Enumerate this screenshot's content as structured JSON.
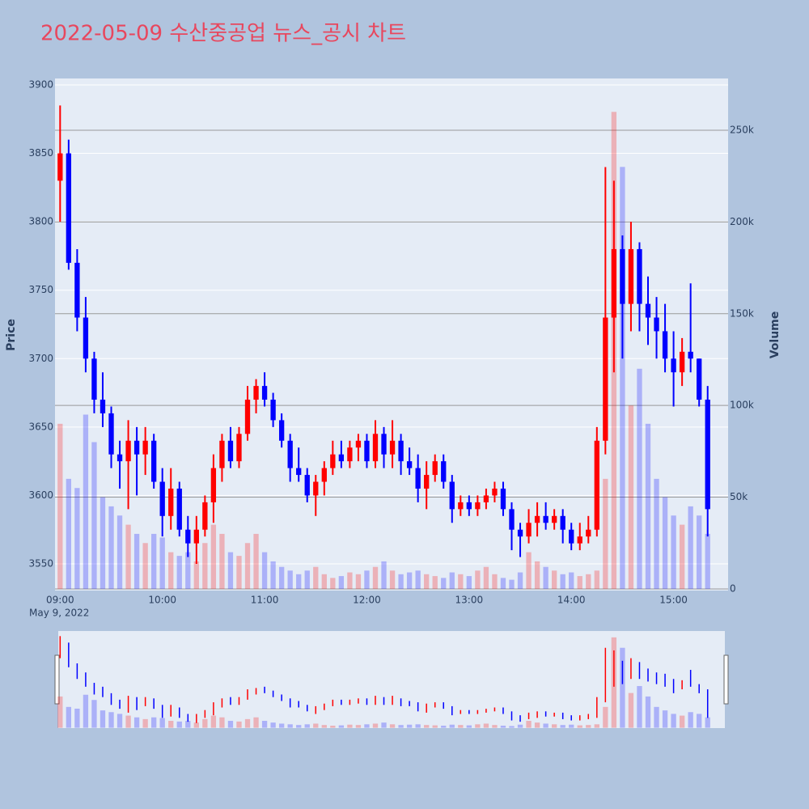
{
  "chart_data": {
    "type": "candlestick",
    "title": "2022-05-09 수산중공업 뉴스_공시 차트",
    "y_label": "Price",
    "y2_label": "Volume",
    "x_date_label": "May 9, 2022",
    "increasing_color": "#ff0000",
    "decreasing_color": "#0000ff",
    "grid": true,
    "x": [
      "2022-05-09 09:00",
      "2022-05-09 09:05",
      "2022-05-09 09:10",
      "2022-05-09 09:15",
      "2022-05-09 09:20",
      "2022-05-09 09:25",
      "2022-05-09 09:30",
      "2022-05-09 09:35",
      "2022-05-09 09:40",
      "2022-05-09 09:45",
      "2022-05-09 09:50",
      "2022-05-09 09:55",
      "2022-05-09 10:00",
      "2022-05-09 10:05",
      "2022-05-09 10:10",
      "2022-05-09 10:15",
      "2022-05-09 10:20",
      "2022-05-09 10:25",
      "2022-05-09 10:30",
      "2022-05-09 10:35",
      "2022-05-09 10:40",
      "2022-05-09 10:45",
      "2022-05-09 10:50",
      "2022-05-09 10:55",
      "2022-05-09 11:00",
      "2022-05-09 11:05",
      "2022-05-09 11:10",
      "2022-05-09 11:15",
      "2022-05-09 11:20",
      "2022-05-09 11:25",
      "2022-05-09 11:30",
      "2022-05-09 11:35",
      "2022-05-09 11:40",
      "2022-05-09 11:45",
      "2022-05-09 11:50",
      "2022-05-09 11:55",
      "2022-05-09 12:00",
      "2022-05-09 12:05",
      "2022-05-09 12:10",
      "2022-05-09 12:15",
      "2022-05-09 12:20",
      "2022-05-09 12:25",
      "2022-05-09 12:30",
      "2022-05-09 12:35",
      "2022-05-09 12:40",
      "2022-05-09 12:45",
      "2022-05-09 12:50",
      "2022-05-09 12:55",
      "2022-05-09 13:00",
      "2022-05-09 13:05",
      "2022-05-09 13:10",
      "2022-05-09 13:15",
      "2022-05-09 13:20",
      "2022-05-09 13:25",
      "2022-05-09 13:30",
      "2022-05-09 13:35",
      "2022-05-09 13:40",
      "2022-05-09 13:45",
      "2022-05-09 13:50",
      "2022-05-09 13:55",
      "2022-05-09 14:00",
      "2022-05-09 14:05",
      "2022-05-09 14:10",
      "2022-05-09 14:15",
      "2022-05-09 14:20",
      "2022-05-09 14:25",
      "2022-05-09 14:30",
      "2022-05-09 14:35",
      "2022-05-09 14:40",
      "2022-05-09 14:45",
      "2022-05-09 14:50",
      "2022-05-09 14:55",
      "2022-05-09 15:00",
      "2022-05-09 15:05",
      "2022-05-09 15:10",
      "2022-05-09 15:15",
      "2022-05-09 15:20"
    ],
    "open": [
      3830,
      3850,
      3770,
      3730,
      3700,
      3670,
      3660,
      3630,
      3625,
      3640,
      3630,
      3640,
      3610,
      3585,
      3605,
      3575,
      3565,
      3575,
      3595,
      3620,
      3640,
      3625,
      3645,
      3670,
      3680,
      3670,
      3655,
      3640,
      3620,
      3615,
      3600,
      3610,
      3620,
      3630,
      3625,
      3635,
      3640,
      3625,
      3645,
      3630,
      3640,
      3625,
      3620,
      3605,
      3615,
      3625,
      3610,
      3590,
      3595,
      3590,
      3595,
      3600,
      3605,
      3590,
      3575,
      3570,
      3580,
      3585,
      3580,
      3585,
      3575,
      3565,
      3570,
      3575,
      3640,
      3730,
      3780,
      3740,
      3780,
      3740,
      3730,
      3720,
      3700,
      3690,
      3705,
      3700,
      3670
    ],
    "high": [
      3885,
      3860,
      3780,
      3745,
      3705,
      3690,
      3665,
      3640,
      3655,
      3650,
      3650,
      3645,
      3620,
      3620,
      3610,
      3585,
      3585,
      3600,
      3630,
      3645,
      3650,
      3650,
      3680,
      3685,
      3690,
      3675,
      3660,
      3645,
      3635,
      3620,
      3615,
      3625,
      3640,
      3640,
      3640,
      3645,
      3645,
      3655,
      3650,
      3655,
      3645,
      3635,
      3630,
      3625,
      3630,
      3630,
      3615,
      3600,
      3600,
      3600,
      3605,
      3610,
      3610,
      3595,
      3580,
      3590,
      3595,
      3595,
      3590,
      3590,
      3580,
      3580,
      3585,
      3650,
      3840,
      3830,
      3790,
      3800,
      3785,
      3760,
      3745,
      3740,
      3720,
      3715,
      3755,
      3700,
      3680
    ],
    "low": [
      3800,
      3765,
      3720,
      3690,
      3660,
      3650,
      3620,
      3605,
      3590,
      3600,
      3615,
      3605,
      3570,
      3575,
      3570,
      3555,
      3550,
      3570,
      3580,
      3610,
      3620,
      3620,
      3640,
      3660,
      3665,
      3650,
      3635,
      3610,
      3610,
      3595,
      3585,
      3600,
      3615,
      3620,
      3620,
      3625,
      3620,
      3620,
      3620,
      3620,
      3615,
      3615,
      3595,
      3590,
      3610,
      3605,
      3580,
      3585,
      3585,
      3585,
      3590,
      3595,
      3585,
      3560,
      3555,
      3565,
      3570,
      3575,
      3575,
      3565,
      3560,
      3560,
      3565,
      3570,
      3630,
      3690,
      3700,
      3720,
      3720,
      3710,
      3700,
      3690,
      3665,
      3680,
      3690,
      3665,
      3570
    ],
    "close": [
      3850,
      3770,
      3730,
      3700,
      3670,
      3660,
      3630,
      3625,
      3640,
      3630,
      3640,
      3610,
      3585,
      3605,
      3575,
      3565,
      3575,
      3595,
      3620,
      3640,
      3625,
      3645,
      3670,
      3680,
      3670,
      3655,
      3640,
      3620,
      3615,
      3600,
      3610,
      3620,
      3630,
      3625,
      3635,
      3640,
      3625,
      3645,
      3630,
      3640,
      3625,
      3620,
      3605,
      3615,
      3625,
      3610,
      3590,
      3595,
      3590,
      3595,
      3600,
      3605,
      3590,
      3575,
      3570,
      3580,
      3585,
      3580,
      3585,
      3575,
      3565,
      3570,
      3575,
      3640,
      3730,
      3780,
      3740,
      3780,
      3740,
      3730,
      3720,
      3700,
      3690,
      3705,
      3700,
      3670,
      3590
    ],
    "volume": [
      90000,
      60000,
      55000,
      95000,
      80000,
      50000,
      45000,
      40000,
      35000,
      30000,
      25000,
      30000,
      28000,
      20000,
      18000,
      20000,
      15000,
      25000,
      35000,
      30000,
      20000,
      18000,
      25000,
      30000,
      20000,
      15000,
      12000,
      10000,
      8000,
      10000,
      12000,
      8000,
      6000,
      7000,
      9000,
      8000,
      10000,
      12000,
      15000,
      10000,
      8000,
      9000,
      10000,
      8000,
      7000,
      6000,
      9000,
      8000,
      7000,
      10000,
      12000,
      8000,
      6000,
      5000,
      9000,
      20000,
      15000,
      12000,
      10000,
      8000,
      9000,
      7000,
      8000,
      10000,
      60000,
      260000,
      230000,
      100000,
      120000,
      90000,
      60000,
      50000,
      40000,
      35000,
      45000,
      40000,
      30000
    ],
    "xlim": [
      "2022-05-09 08:57",
      "2022-05-09 15:32"
    ],
    "xticks": [
      {
        "value": "2022-05-09 09:00",
        "label": "09:00"
      },
      {
        "value": "2022-05-09 10:00",
        "label": "10:00"
      },
      {
        "value": "2022-05-09 11:00",
        "label": "11:00"
      },
      {
        "value": "2022-05-09 12:00",
        "label": "12:00"
      },
      {
        "value": "2022-05-09 13:00",
        "label": "13:00"
      },
      {
        "value": "2022-05-09 14:00",
        "label": "14:00"
      },
      {
        "value": "2022-05-09 15:00",
        "label": "15:00"
      }
    ],
    "ylim": [
      3530.5,
      3904.7
    ],
    "yticks": [
      3550,
      3600,
      3650,
      3700,
      3750,
      3800,
      3850,
      3900
    ],
    "y2lim": [
      -900,
      278200
    ],
    "y2ticks": [
      0,
      {
        "value": 50000,
        "label": "50k"
      },
      {
        "value": 100000,
        "label": "100k"
      },
      {
        "value": 150000,
        "label": "150k"
      },
      {
        "value": 200000,
        "label": "200k"
      },
      {
        "value": 250000,
        "label": "250k"
      }
    ]
  }
}
